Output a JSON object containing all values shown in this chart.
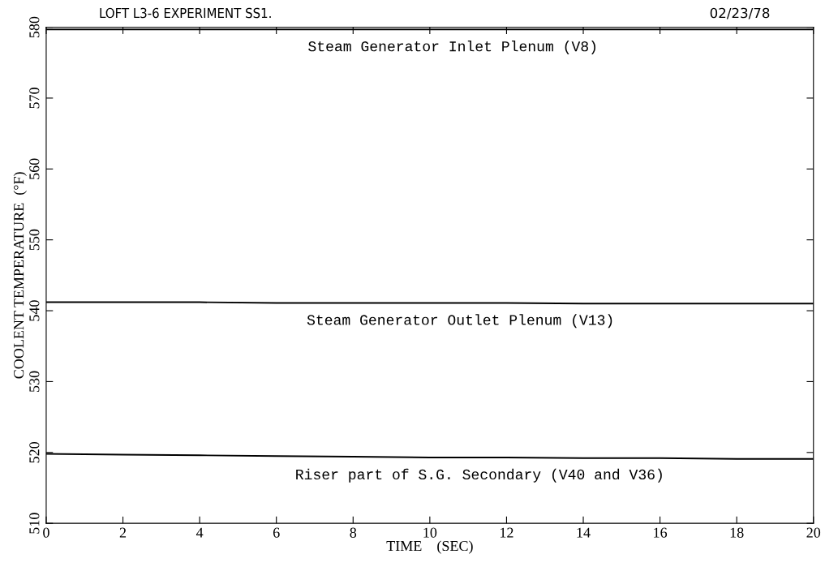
{
  "chart_data": {
    "type": "line",
    "title": "LOFT L3-6 EXPERIMENT SS1.",
    "subtitle": "02/23/78",
    "xlabel": "TIME    (SEC)",
    "ylabel": "COOLENT TEMPERATURE  (°F)",
    "x": [
      0,
      2,
      4,
      6,
      8,
      10,
      12,
      14,
      16,
      18,
      20
    ],
    "series": [
      {
        "color": "#000000",
        "values": [
          579.7,
          579.7,
          579.7,
          579.7,
          579.7,
          579.7,
          579.7,
          579.7,
          579.7,
          579.7,
          579.7
        ]
      },
      {
        "color": "#000000",
        "values": [
          541.2,
          541.2,
          541.2,
          541.1,
          541.1,
          541.1,
          541.1,
          541.0,
          541.0,
          541.0,
          541.0
        ]
      },
      {
        "color": "#000000",
        "values": [
          519.8,
          519.7,
          519.6,
          519.5,
          519.4,
          519.3,
          519.3,
          519.2,
          519.2,
          519.1,
          519.1
        ]
      }
    ],
    "annotations": [
      {
        "text": "Steam Generator Inlet Plenum (V8)",
        "x": 10.6,
        "y": 579.7
      },
      {
        "text": "Steam Generator Outlet Plenum (V13)",
        "x": 10.8,
        "y": 541.1
      },
      {
        "text": "Riser part of S.G. Secondary (V40 and V36)",
        "x": 11.3,
        "y": 519.3
      }
    ],
    "xlim": [
      0,
      20
    ],
    "ylim": [
      510,
      580
    ],
    "xticks": [
      0,
      2,
      4,
      6,
      8,
      10,
      12,
      14,
      16,
      18,
      20
    ],
    "yticks": [
      510,
      520,
      530,
      540,
      550,
      560,
      570,
      580
    ],
    "grid": false,
    "legend": false,
    "marker": "none",
    "line_style": "solid"
  }
}
